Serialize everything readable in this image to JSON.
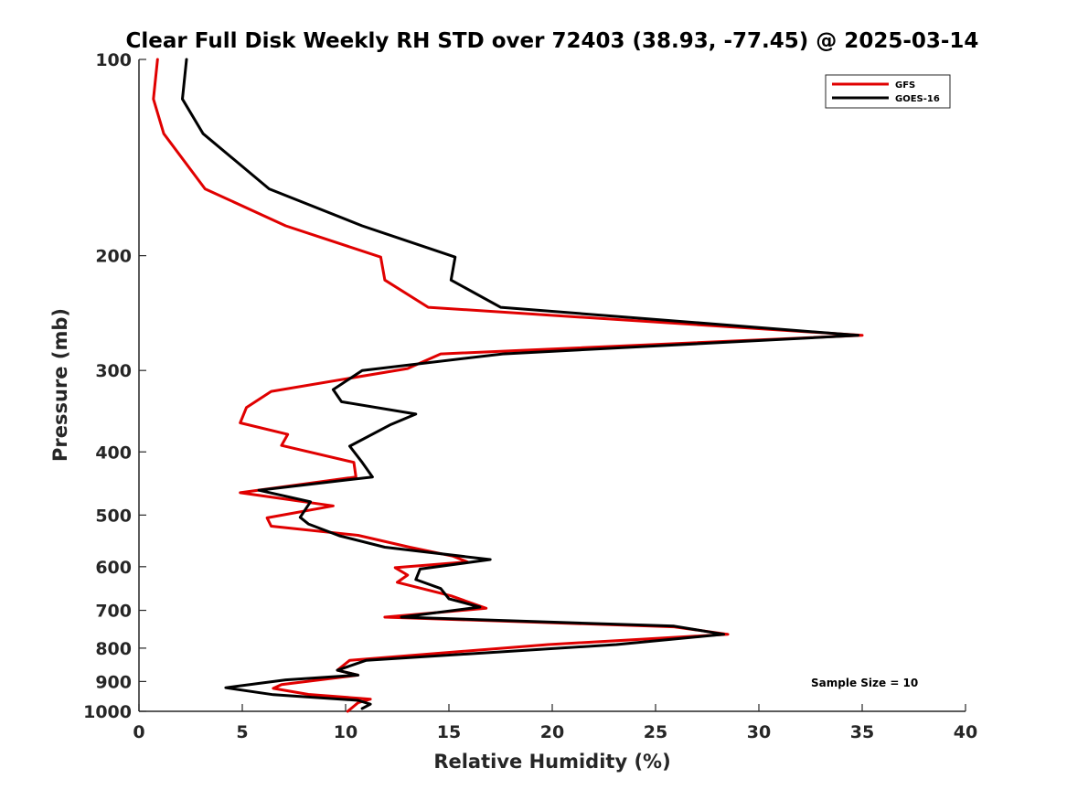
{
  "chart_data": {
    "type": "line",
    "title": "Clear Full Disk Weekly RH STD over 72403 (38.93, -77.45) @ 2025-03-14",
    "xlabel": "Relative Humidity (%)",
    "ylabel": "Pressure (mb)",
    "xlim": [
      0,
      40
    ],
    "ylim": [
      100,
      1000
    ],
    "y_scale": "log",
    "y_reversed": true,
    "x_ticks": [
      0,
      5,
      10,
      15,
      20,
      25,
      30,
      35,
      40
    ],
    "y_ticks": [
      100,
      200,
      300,
      400,
      500,
      600,
      700,
      800,
      900,
      1000
    ],
    "grid": false,
    "legend_position": "top-right",
    "annotation": "Sample Size = 10",
    "series": [
      {
        "name": "GFS",
        "color": "#e00000",
        "points": [
          [
            0.9,
            100
          ],
          [
            0.7,
            115
          ],
          [
            1.2,
            130
          ],
          [
            3.2,
            158
          ],
          [
            7.1,
            180
          ],
          [
            11.7,
            201
          ],
          [
            11.9,
            218
          ],
          [
            14.0,
            240
          ],
          [
            35.0,
            265
          ],
          [
            14.6,
            283
          ],
          [
            13.0,
            298
          ],
          [
            6.4,
            323
          ],
          [
            5.2,
            342
          ],
          [
            4.9,
            361
          ],
          [
            7.2,
            376
          ],
          [
            6.9,
            391
          ],
          [
            10.4,
            415
          ],
          [
            10.5,
            437
          ],
          [
            4.9,
            462
          ],
          [
            9.4,
            484
          ],
          [
            6.2,
            505
          ],
          [
            6.4,
            520
          ],
          [
            10.6,
            537
          ],
          [
            13.1,
            560
          ],
          [
            15.2,
            578
          ],
          [
            15.9,
            590
          ],
          [
            12.4,
            602
          ],
          [
            13.0,
            618
          ],
          [
            12.5,
            634
          ],
          [
            15.1,
            665
          ],
          [
            16.8,
            695
          ],
          [
            11.9,
            717
          ],
          [
            25.9,
            742
          ],
          [
            28.5,
            762
          ],
          [
            19.8,
            790
          ],
          [
            10.2,
            835
          ],
          [
            9.6,
            865
          ],
          [
            10.6,
            880
          ],
          [
            6.9,
            910
          ],
          [
            6.5,
            922
          ],
          [
            8.2,
            942
          ],
          [
            11.2,
            958
          ],
          [
            10.6,
            970
          ],
          [
            10.1,
            1000
          ]
        ]
      },
      {
        "name": "GOES-16",
        "color": "#000000",
        "points": [
          [
            2.3,
            100
          ],
          [
            2.1,
            115
          ],
          [
            3.1,
            130
          ],
          [
            6.3,
            158
          ],
          [
            10.8,
            180
          ],
          [
            15.3,
            201
          ],
          [
            15.1,
            218
          ],
          [
            17.5,
            240
          ],
          [
            34.8,
            265
          ],
          [
            17.6,
            283
          ],
          [
            10.8,
            300
          ],
          [
            9.4,
            321
          ],
          [
            9.8,
            335
          ],
          [
            13.4,
            350
          ],
          [
            12.2,
            363
          ],
          [
            10.2,
            392
          ],
          [
            10.8,
            415
          ],
          [
            11.3,
            437
          ],
          [
            5.8,
            458
          ],
          [
            8.3,
            477
          ],
          [
            7.8,
            504
          ],
          [
            8.2,
            516
          ],
          [
            9.7,
            538
          ],
          [
            11.9,
            560
          ],
          [
            17.0,
            585
          ],
          [
            13.6,
            605
          ],
          [
            13.4,
            628
          ],
          [
            14.6,
            648
          ],
          [
            15.0,
            672
          ],
          [
            16.5,
            692
          ],
          [
            12.7,
            717
          ],
          [
            25.9,
            740
          ],
          [
            28.3,
            762
          ],
          [
            23.1,
            790
          ],
          [
            11.0,
            835
          ],
          [
            9.6,
            865
          ],
          [
            10.6,
            880
          ],
          [
            7.1,
            895
          ],
          [
            4.2,
            920
          ],
          [
            6.5,
            943
          ],
          [
            10.6,
            962
          ],
          [
            11.2,
            975
          ],
          [
            10.8,
            990
          ]
        ]
      }
    ]
  }
}
